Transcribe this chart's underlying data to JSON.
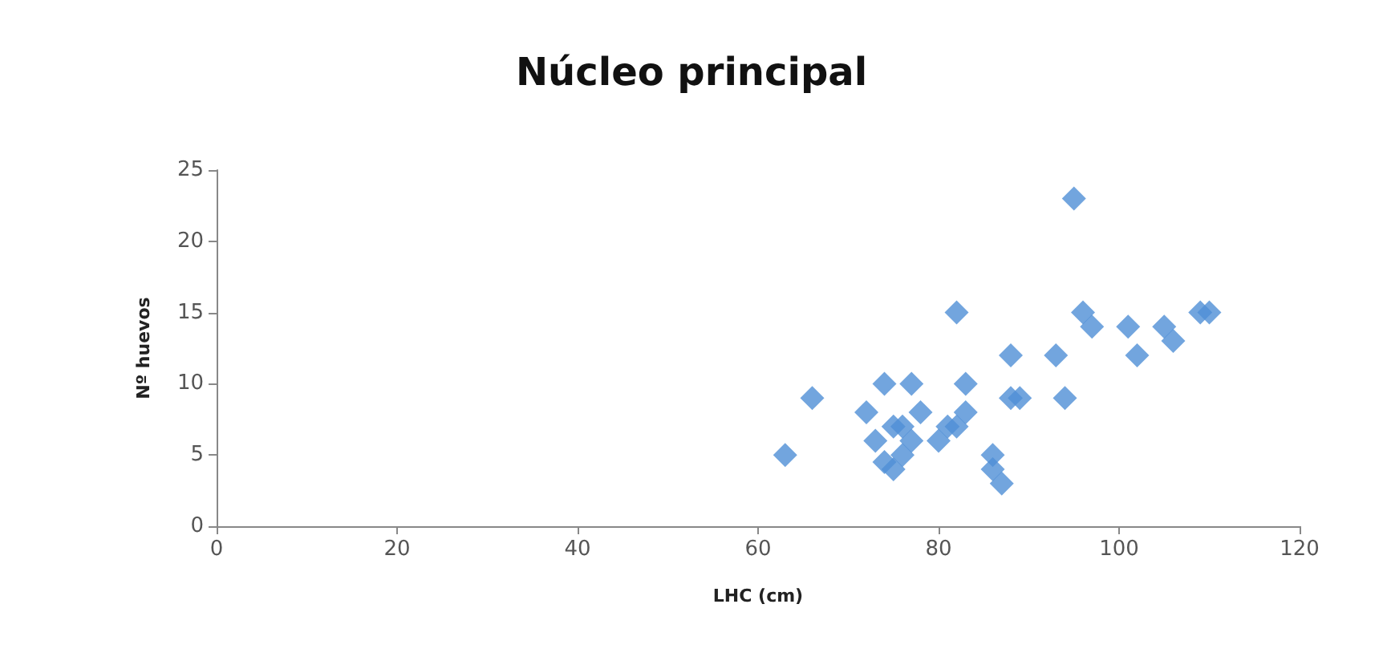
{
  "chart_data": {
    "type": "scatter",
    "title": "Núcleo principal",
    "xlabel": "LHC (cm)",
    "ylabel": "Nº huevos",
    "x": [
      63,
      66,
      72,
      74,
      77,
      73,
      75,
      76,
      75,
      77,
      78,
      76,
      74,
      81,
      82,
      80,
      83,
      81,
      82,
      83,
      86,
      86,
      87,
      88,
      88,
      89,
      93,
      94,
      95,
      96,
      97,
      101,
      102,
      105,
      106,
      109,
      110
    ],
    "values": [
      5,
      9,
      8,
      10,
      10,
      6,
      4,
      5,
      7,
      6,
      8,
      7,
      4.5,
      null,
      7,
      6,
      8,
      7,
      15,
      10,
      5,
      4,
      3,
      12,
      9,
      9,
      12,
      9,
      23,
      15,
      14,
      14,
      12,
      14,
      13,
      15,
      15
    ],
    "color": "#4f8fd6",
    "marker": "diamond",
    "xlim": [
      0,
      120
    ],
    "xticks": [
      0,
      20,
      40,
      60,
      80,
      100,
      120
    ],
    "ylim": [
      0,
      25
    ],
    "yticks": [
      0,
      5,
      10,
      15,
      20,
      25
    ]
  }
}
